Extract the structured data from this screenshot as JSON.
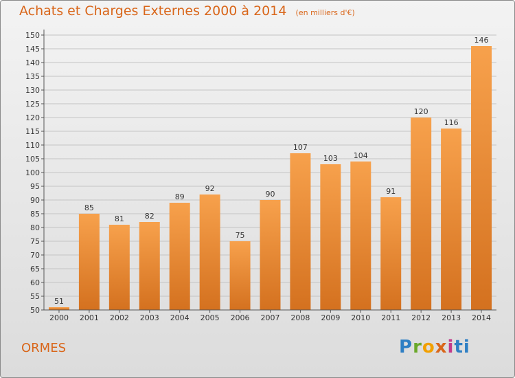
{
  "chart_data": {
    "type": "bar",
    "title": "Achats et Charges Externes 2000 à 2014",
    "subtitle": "(en milliers d'€)",
    "categories": [
      "2000",
      "2001",
      "2002",
      "2003",
      "2004",
      "2005",
      "2006",
      "2007",
      "2008",
      "2009",
      "2010",
      "2011",
      "2012",
      "2013",
      "2014"
    ],
    "values": [
      51,
      85,
      81,
      82,
      89,
      92,
      75,
      90,
      107,
      103,
      104,
      91,
      120,
      116,
      146
    ],
    "ylim": [
      50,
      150
    ],
    "ytick_step": 5,
    "grid": true,
    "xlabel": "",
    "ylabel": "",
    "bar_color_light": "#f7a14c",
    "bar_color_dark": "#d4711f"
  },
  "footer": {
    "commune": "ORMES",
    "brand": "Proxiti"
  }
}
